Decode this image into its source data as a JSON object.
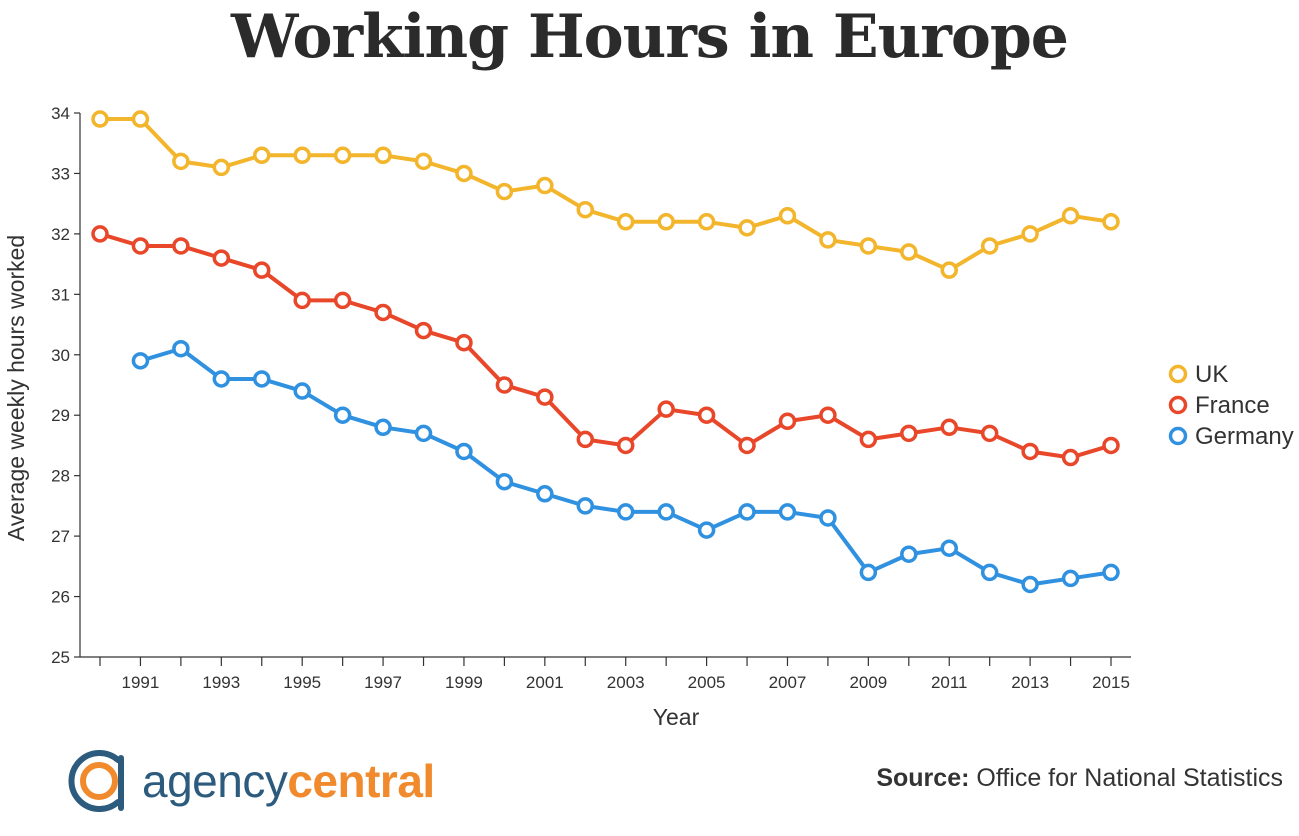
{
  "title": "Working Hours in Europe",
  "source": {
    "label": "Source:",
    "text": "Office for National Statistics"
  },
  "logo": {
    "word1": "agency",
    "word2": "central",
    "mark_icon": "agency-central-logo-icon",
    "colors": {
      "blue": "#2c5b7d",
      "orange": "#f08a2c"
    }
  },
  "chart_data": {
    "type": "line",
    "xlabel": "Year",
    "ylabel": "Average weekly hours worked",
    "xlim": [
      1990,
      2015
    ],
    "ylim": [
      25,
      34
    ],
    "yticks": [
      "25",
      "26",
      "27",
      "28",
      "29",
      "30",
      "31",
      "32",
      "33",
      "34"
    ],
    "xtick_labels": [
      "1991",
      "1993",
      "1995",
      "1997",
      "1999",
      "2001",
      "2003",
      "2005",
      "2007",
      "2009",
      "2011",
      "2013",
      "2015"
    ],
    "legend_position": "right",
    "series": [
      {
        "name": "UK",
        "color": "#f2b52b",
        "x": [
          1990,
          1991,
          1992,
          1993,
          1994,
          1995,
          1996,
          1997,
          1998,
          1999,
          2000,
          2001,
          2002,
          2003,
          2004,
          2005,
          2006,
          2007,
          2008,
          2009,
          2010,
          2011,
          2012,
          2013,
          2014,
          2015
        ],
        "values": [
          33.9,
          33.9,
          33.2,
          33.1,
          33.3,
          33.3,
          33.3,
          33.3,
          33.2,
          33.0,
          32.7,
          32.8,
          32.4,
          32.2,
          32.2,
          32.2,
          32.1,
          32.3,
          31.9,
          31.8,
          31.7,
          31.4,
          31.8,
          32.0,
          32.3,
          32.2
        ]
      },
      {
        "name": "France",
        "color": "#e8472a",
        "x": [
          1990,
          1991,
          1992,
          1993,
          1994,
          1995,
          1996,
          1997,
          1998,
          1999,
          2000,
          2001,
          2002,
          2003,
          2004,
          2005,
          2006,
          2007,
          2008,
          2009,
          2010,
          2011,
          2012,
          2013,
          2014,
          2015
        ],
        "values": [
          32.0,
          31.8,
          31.8,
          31.6,
          31.4,
          30.9,
          30.9,
          30.7,
          30.4,
          30.2,
          29.5,
          29.3,
          28.6,
          28.5,
          29.1,
          29.0,
          28.5,
          28.9,
          29.0,
          28.6,
          28.7,
          28.8,
          28.7,
          28.4,
          28.3,
          28.5
        ]
      },
      {
        "name": "Germany",
        "color": "#2f91e0",
        "x": [
          1991,
          1992,
          1993,
          1994,
          1995,
          1996,
          1997,
          1998,
          1999,
          2000,
          2001,
          2002,
          2003,
          2004,
          2005,
          2006,
          2007,
          2008,
          2009,
          2010,
          2011,
          2012,
          2013,
          2014,
          2015
        ],
        "values": [
          29.9,
          30.1,
          29.6,
          29.6,
          29.4,
          29.0,
          28.8,
          28.7,
          28.4,
          27.9,
          27.7,
          27.5,
          27.4,
          27.4,
          27.1,
          27.4,
          27.4,
          27.3,
          26.4,
          26.7,
          26.8,
          26.4,
          26.2,
          26.3,
          26.4
        ]
      }
    ]
  }
}
